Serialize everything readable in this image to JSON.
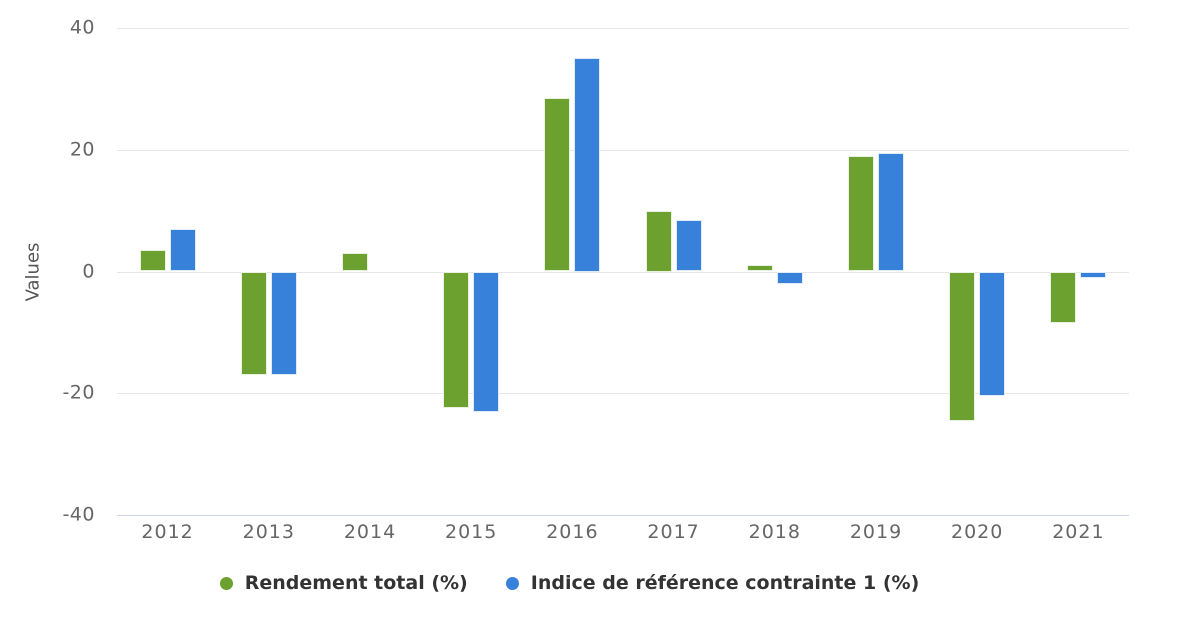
{
  "chart": {
    "y_axis_title": "Values",
    "y_ticks": [
      40,
      20,
      0,
      -20,
      -40
    ],
    "colors": {
      "series_green": "#6DA12F",
      "series_blue": "#3781DB",
      "grid": "#e6e6e6",
      "axis_line": "#ccd6eb",
      "tick_label": "#666666",
      "legend_text": "#333333",
      "background": "#ffffff"
    }
  },
  "chart_data": {
    "type": "bar",
    "title": "",
    "categories": [
      "2012",
      "2013",
      "2014",
      "2015",
      "2016",
      "2017",
      "2018",
      "2019",
      "2020",
      "2021"
    ],
    "series": [
      {
        "name": "Rendement total (%)",
        "color": "#6DA12F",
        "values": [
          3.5,
          -17,
          3,
          -22.5,
          28.5,
          10,
          1,
          19,
          -24.5,
          -8.5
        ]
      },
      {
        "name": "Indice de référence contrainte 1 (%)",
        "color": "#3781DB",
        "values": [
          7,
          -17,
          0,
          -23,
          35,
          8.5,
          -2,
          19.5,
          -20.5,
          -1
        ]
      }
    ],
    "xlabel": "",
    "ylabel": "Values",
    "ylim": [
      -40,
      40
    ],
    "grid": true,
    "legend_position": "bottom"
  }
}
